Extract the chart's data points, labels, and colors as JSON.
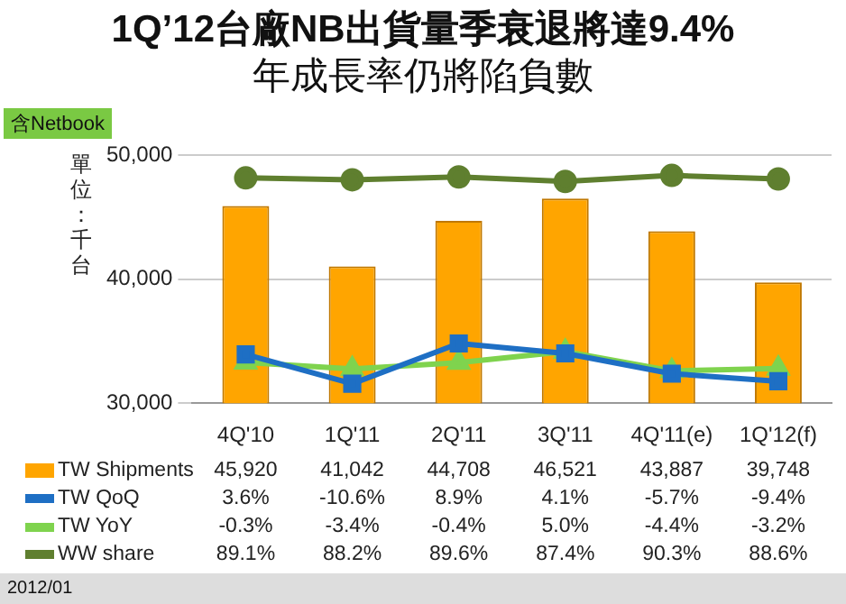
{
  "chart_data": {
    "type": "bar",
    "title": "1Q’12台廠NB出貨量季衰退將達9.4%",
    "subtitle": "年成長率仍將陷負數",
    "ylabel": "單位：千台",
    "annotations": [
      "含Netbook",
      "2012/01"
    ],
    "categories": [
      "4Q'10",
      "1Q'11",
      "2Q'11",
      "3Q'11",
      "4Q'11(e)",
      "1Q'12(f)"
    ],
    "series": [
      {
        "name": "TW Shipments",
        "color": "#ffa500",
        "values": [
          45920,
          41042,
          44708,
          46521,
          43887,
          39748
        ],
        "value_labels": [
          "45,920",
          "41,042",
          "44,708",
          "46,521",
          "43,887",
          "39,748"
        ]
      },
      {
        "name": "TW QoQ",
        "type": "line",
        "axis": "y2",
        "marker": "square",
        "color": "#1e6fc4",
        "values": [
          3.6,
          -10.6,
          8.9,
          4.1,
          -5.7,
          -9.4
        ],
        "value_labels": [
          "3.6%",
          "-10.6%",
          "8.9%",
          "4.1%",
          "-5.7%",
          "-9.4%"
        ]
      },
      {
        "name": "TW YoY",
        "type": "line",
        "axis": "y2",
        "marker": "triangle",
        "color": "#7fd34e",
        "values": [
          -0.3,
          -3.4,
          -0.4,
          5.0,
          -4.4,
          -3.2
        ],
        "value_labels": [
          "-0.3%",
          "-3.4%",
          "-0.4%",
          "5.0%",
          "-4.4%",
          "-3.2%"
        ]
      },
      {
        "name": "WW share",
        "type": "line",
        "axis": "y2",
        "marker": "circle",
        "color": "#5f7f2f",
        "values": [
          89.1,
          88.2,
          89.6,
          87.4,
          90.3,
          88.6
        ],
        "value_labels": [
          "89.1%",
          "88.2%",
          "89.6%",
          "87.4%",
          "90.3%",
          "88.6%"
        ]
      }
    ],
    "ylim": [
      30000,
      50000
    ],
    "yticks": [
      {
        "value": 30000,
        "label": "30,000"
      },
      {
        "value": 40000,
        "label": "40,000"
      },
      {
        "value": 50000,
        "label": "50,000"
      }
    ],
    "y2lim": [
      -20,
      100
    ],
    "grid": "y",
    "legend": "bottom"
  }
}
